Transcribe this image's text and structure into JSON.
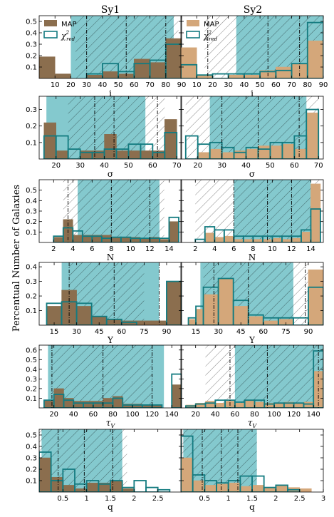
{
  "figure": {
    "ylabel": "Percentual Number of Galaxies",
    "columns": [
      "Sy1",
      "Sy2"
    ],
    "legend": {
      "map": "MAP",
      "chi": "χ",
      "chi_sup": "2",
      "chi_sub": "red"
    }
  },
  "colors": {
    "map_sy1": "#8b6e4e",
    "map_sy2": "#d4a77a",
    "chi_edge": "#137b80",
    "band": "#6fbfc6"
  },
  "chart_data": [
    {
      "type": "bar",
      "panel": "i-Sy1",
      "xlabel": "i",
      "xlim": [
        0,
        90
      ],
      "ylim": [
        0,
        0.55
      ],
      "xticks": [
        10,
        20,
        30,
        40,
        50,
        60,
        70,
        80,
        90
      ],
      "yticks": [
        0.1,
        0.2,
        0.3,
        0.4,
        0.5
      ],
      "bins": [
        0,
        10,
        20,
        30,
        40,
        50,
        60,
        70,
        80,
        90
      ],
      "map": [
        0.19,
        0.04,
        0.0,
        0.03,
        0.06,
        0.04,
        0.17,
        0.14,
        0.35
      ],
      "chi": [
        0.0,
        0.0,
        0.0,
        0.04,
        0.13,
        0.06,
        0.13,
        0.16,
        0.3
      ],
      "band": [
        20,
        85
      ],
      "hatch": [
        23,
        88
      ],
      "vlines": [
        30,
        55,
        80
      ]
    },
    {
      "type": "bar",
      "panel": "i-Sy2",
      "xlabel": "i",
      "xlim": [
        0,
        90
      ],
      "ylim": [
        0,
        0.55
      ],
      "xticks": [
        10,
        20,
        30,
        40,
        50,
        60,
        70,
        80,
        90
      ],
      "yticks": [
        0.1,
        0.2,
        0.3,
        0.4,
        0.5
      ],
      "bins": [
        0,
        10,
        20,
        30,
        40,
        50,
        60,
        70,
        80,
        90
      ],
      "map": [
        0.27,
        0.03,
        0.0,
        0.03,
        0.03,
        0.07,
        0.1,
        0.13,
        0.33
      ],
      "chi": [
        0.12,
        0.03,
        0.04,
        0.04,
        0.04,
        0.06,
        0.07,
        0.13,
        0.49
      ],
      "band": [
        35,
        90
      ],
      "hatch": [
        15,
        90
      ],
      "vlines": [
        17,
        55,
        75
      ]
    },
    {
      "type": "bar",
      "panel": "sigma-Sy1",
      "xlabel": "σ",
      "xlim": [
        13,
        72
      ],
      "ylim": [
        0,
        0.38
      ],
      "xticks": [
        20,
        30,
        40,
        50,
        60,
        70
      ],
      "yticks": [
        0.1,
        0.2,
        0.3
      ],
      "bins": [
        15,
        20,
        25,
        30,
        35,
        40,
        45,
        50,
        55,
        60,
        65,
        70
      ],
      "map": [
        0.22,
        0.05,
        0.0,
        0.05,
        0.05,
        0.15,
        0.05,
        0.05,
        0.05,
        0.05,
        0.24
      ],
      "chi": [
        0.14,
        0.14,
        0.06,
        0.04,
        0.04,
        0.06,
        0.06,
        0.09,
        0.09,
        0.04,
        0.16
      ],
      "band": [
        16,
        57
      ],
      "hatch": [
        25,
        65
      ],
      "vlines": [
        36,
        44,
        62
      ]
    },
    {
      "type": "bar",
      "panel": "sigma-Sy2",
      "xlabel": "σ",
      "xlim": [
        13,
        72
      ],
      "ylim": [
        0,
        0.38
      ],
      "xticks": [
        20,
        30,
        40,
        50,
        60,
        70
      ],
      "yticks": [
        0.1,
        0.2,
        0.3
      ],
      "bins": [
        15,
        20,
        25,
        30,
        35,
        40,
        45,
        50,
        55,
        60,
        65,
        70
      ],
      "map": [
        0.0,
        0.04,
        0.06,
        0.04,
        0.05,
        0.06,
        0.08,
        0.08,
        0.09,
        0.06,
        0.28
      ],
      "chi": [
        0.14,
        0.09,
        0.1,
        0.07,
        0.04,
        0.07,
        0.06,
        0.1,
        0.1,
        0.14,
        0.3
      ],
      "band": [
        25,
        65
      ],
      "hatch": [
        15,
        70
      ],
      "vlines": [
        30,
        45,
        62
      ]
    },
    {
      "type": "bar",
      "panel": "N-Sy1",
      "xlabel": "N",
      "xlim": [
        0.5,
        15.3
      ],
      "ylim": [
        0,
        0.6
      ],
      "xticks": [
        2,
        4,
        6,
        8,
        10,
        12,
        14
      ],
      "yticks": [
        0.1,
        0.2,
        0.3,
        0.4,
        0.5
      ],
      "bins": [
        1,
        2,
        3,
        4,
        5,
        6,
        7,
        8,
        9,
        10,
        11,
        12,
        13,
        14,
        15
      ],
      "map": [
        0.0,
        0.05,
        0.22,
        0.07,
        0.07,
        0.07,
        0.07,
        0.05,
        0.05,
        0.05,
        0.04,
        0.05,
        0.03,
        0.2
      ],
      "chi": [
        0.0,
        0.06,
        0.14,
        0.11,
        0.06,
        0.06,
        0.04,
        0.05,
        0.05,
        0.04,
        0.04,
        0.04,
        0.04,
        0.24
      ],
      "band": [
        4.5,
        13
      ],
      "hatch": [
        3,
        13.5
      ],
      "vlines": [
        3.5,
        8,
        12
      ]
    },
    {
      "type": "bar",
      "panel": "N-Sy2",
      "xlabel": "N",
      "xlim": [
        0.5,
        15.3
      ],
      "ylim": [
        0,
        0.6
      ],
      "xticks": [
        2,
        4,
        6,
        8,
        10,
        12,
        14
      ],
      "yticks": [
        0.1,
        0.2,
        0.3,
        0.4,
        0.5
      ],
      "bins": [
        1,
        2,
        3,
        4,
        5,
        6,
        7,
        8,
        9,
        10,
        11,
        12,
        13,
        14,
        15
      ],
      "map": [
        0.0,
        0.0,
        0.09,
        0.05,
        0.06,
        0.03,
        0.03,
        0.03,
        0.03,
        0.04,
        0.03,
        0.04,
        0.1,
        0.56
      ],
      "chi": [
        0.0,
        0.03,
        0.15,
        0.12,
        0.12,
        0.06,
        0.06,
        0.06,
        0.06,
        0.06,
        0.06,
        0.06,
        0.12,
        0.32
      ],
      "band": [
        6,
        14
      ],
      "hatch": [
        2,
        15
      ],
      "vlines": [
        6,
        9.5,
        12
      ]
    },
    {
      "type": "bar",
      "panel": "Y-Sy1",
      "xlabel": "Y",
      "xlim": [
        5,
        100
      ],
      "ylim": [
        0,
        0.43
      ],
      "xticks": [
        15,
        30,
        45,
        60,
        75,
        90
      ],
      "yticks": [
        0.1,
        0.2,
        0.3,
        0.4
      ],
      "bins": [
        10,
        20,
        30,
        40,
        50,
        60,
        70,
        80,
        90,
        100
      ],
      "map": [
        0.13,
        0.24,
        0.13,
        0.06,
        0.04,
        0.03,
        0.03,
        0.03,
        0.3
      ],
      "chi": [
        0.15,
        0.16,
        0.15,
        0.06,
        0.04,
        0.02,
        0.0,
        0.0,
        0.3
      ],
      "band": [
        20,
        85
      ],
      "hatch": [
        25,
        75
      ],
      "vlines": [
        25,
        55,
        85
      ]
    },
    {
      "type": "bar",
      "panel": "Y-Sy2",
      "xlabel": "Y",
      "xlim": [
        5,
        100
      ],
      "ylim": [
        0,
        0.43
      ],
      "xticks": [
        15,
        30,
        45,
        60,
        75,
        90
      ],
      "yticks": [
        0.1,
        0.2,
        0.3,
        0.4
      ],
      "bins": [
        10,
        15,
        20,
        30,
        40,
        50,
        60,
        70,
        80,
        90,
        100
      ],
      "map": [
        0.04,
        0.11,
        0.21,
        0.32,
        0.13,
        0.06,
        0.03,
        0.04,
        0.0,
        0.38
      ],
      "chi": [
        0.05,
        0.13,
        0.26,
        0.32,
        0.17,
        0.07,
        0.05,
        0.05,
        0.05,
        0.26
      ],
      "band": [
        18,
        80
      ],
      "hatch": [
        20,
        90
      ],
      "vlines": [
        27,
        50,
        88
      ]
    },
    {
      "type": "bar",
      "panel": "tauV-Sy1",
      "xlabel": "τ",
      "xlabel_sub": "V",
      "xlim": [
        5,
        150
      ],
      "ylim": [
        0,
        0.65
      ],
      "xticks": [
        20,
        40,
        60,
        80,
        100,
        120,
        140
      ],
      "yticks": [
        0.1,
        0.2,
        0.3,
        0.4,
        0.5,
        0.6
      ],
      "bins": [
        10,
        20,
        30,
        40,
        50,
        60,
        70,
        80,
        90,
        100,
        110,
        120,
        130,
        140,
        150
      ],
      "map": [
        0.08,
        0.2,
        0.1,
        0.07,
        0.07,
        0.07,
        0.1,
        0.12,
        0.04,
        0.04,
        0.03,
        0.03,
        0.0,
        0.24
      ],
      "chi": [
        0.08,
        0.14,
        0.08,
        0.05,
        0.05,
        0.05,
        0.05,
        0.1,
        0.03,
        0.03,
        0.03,
        0.03,
        0.0,
        0.35
      ],
      "band": [
        14,
        132
      ],
      "hatch": [
        17,
        120
      ],
      "vlines": [
        18,
        70,
        120
      ]
    },
    {
      "type": "bar",
      "panel": "tauV-Sy2",
      "xlabel": "τ",
      "xlabel_sub": "V",
      "xlim": [
        5,
        150
      ],
      "ylim": [
        0,
        0.65
      ],
      "xticks": [
        20,
        40,
        60,
        80,
        100,
        120,
        140
      ],
      "yticks": [
        0.1,
        0.2,
        0.3,
        0.4,
        0.5,
        0.6
      ],
      "bins": [
        10,
        20,
        30,
        40,
        50,
        60,
        70,
        80,
        90,
        100,
        110,
        120,
        130,
        140,
        150
      ],
      "map": [
        0.03,
        0.05,
        0.07,
        0.05,
        0.07,
        0.05,
        0.08,
        0.06,
        0.05,
        0.05,
        0.06,
        0.05,
        0.06,
        0.38
      ],
      "chi": [
        0.02,
        0.04,
        0.05,
        0.08,
        0.08,
        0.06,
        0.08,
        0.08,
        0.04,
        0.05,
        0.05,
        0.05,
        0.04,
        0.59
      ],
      "band": [
        60,
        150
      ],
      "hatch": [
        30,
        150
      ],
      "vlines": [
        55,
        93,
        145
      ]
    },
    {
      "type": "bar",
      "panel": "q-Sy1",
      "xlabel": "q",
      "xlim": [
        0,
        3
      ],
      "ylim": [
        0,
        0.55
      ],
      "xticks": [
        0.5,
        1.0,
        1.5,
        2.0,
        2.5
      ],
      "yticks": [
        0.1,
        0.2,
        0.3,
        0.4,
        0.5
      ],
      "bins": [
        0,
        0.25,
        0.5,
        0.75,
        1.0,
        1.25,
        1.5,
        1.75,
        2.0,
        2.25,
        2.5,
        2.75,
        3.0
      ],
      "map": [
        0.3,
        0.13,
        0.06,
        0.03,
        0.08,
        0.08,
        0.1,
        0.03,
        0.0,
        0.0,
        0.0,
        0.0
      ],
      "chi": [
        0.35,
        0.1,
        0.2,
        0.07,
        0.1,
        0.07,
        0.1,
        0.04,
        0.1,
        0.04,
        0.02,
        0.0
      ],
      "band": [
        0.05,
        1.75
      ],
      "hatch": [
        0.0,
        1.85
      ],
      "vlines": [
        0.4,
        0.95,
        1.55
      ]
    },
    {
      "type": "bar",
      "panel": "q-Sy2",
      "xlabel": "q",
      "xlim": [
        0,
        3
      ],
      "ylim": [
        0,
        0.55
      ],
      "xticks": [
        0.5,
        1.0,
        1.5,
        2.0,
        2.5,
        3.0
      ],
      "yticks": [
        0.1,
        0.2,
        0.3,
        0.4,
        0.5
      ],
      "bins": [
        0,
        0.25,
        0.5,
        0.75,
        1.0,
        1.25,
        1.5,
        1.75,
        2.0,
        2.25,
        2.5,
        2.75,
        3.0
      ],
      "map": [
        0.3,
        0.1,
        0.06,
        0.07,
        0.08,
        0.05,
        0.06,
        0.04,
        0.06,
        0.04,
        0.03,
        0.0
      ],
      "chi": [
        0.49,
        0.15,
        0.1,
        0.08,
        0.1,
        0.14,
        0.14,
        0.04,
        0.06,
        0.02,
        0.0,
        0.0
      ],
      "band": [
        0.05,
        1.6
      ],
      "hatch": [
        0.0,
        1.6
      ],
      "vlines": [
        0.45,
        0.85,
        1.2
      ]
    }
  ]
}
